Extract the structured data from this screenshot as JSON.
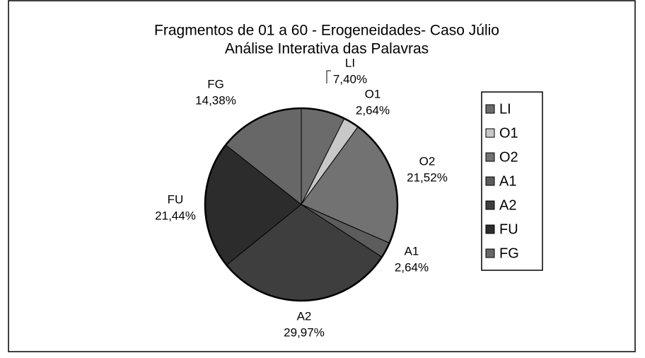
{
  "chart_data": {
    "type": "pie",
    "title": "Fragmentos de 01 a 60  - Erogeneidades- Caso Júlio",
    "subtitle": "Análise Interativa das Palavras",
    "categories": [
      "LI",
      "O1",
      "O2",
      "A1",
      "A2",
      "FU",
      "FG"
    ],
    "values": [
      7.4,
      2.64,
      21.52,
      2.64,
      29.97,
      21.44,
      14.38
    ],
    "value_labels": [
      "7,40%",
      "2,64%",
      "21,52%",
      "2,64%",
      "29,97%",
      "21,44%",
      "14,38%"
    ],
    "colors": [
      "#6b6b6b",
      "#c8c8c8",
      "#727272",
      "#5c5c5c",
      "#3e3e3e",
      "#2c2c2c",
      "#676767"
    ],
    "legend": "right"
  }
}
